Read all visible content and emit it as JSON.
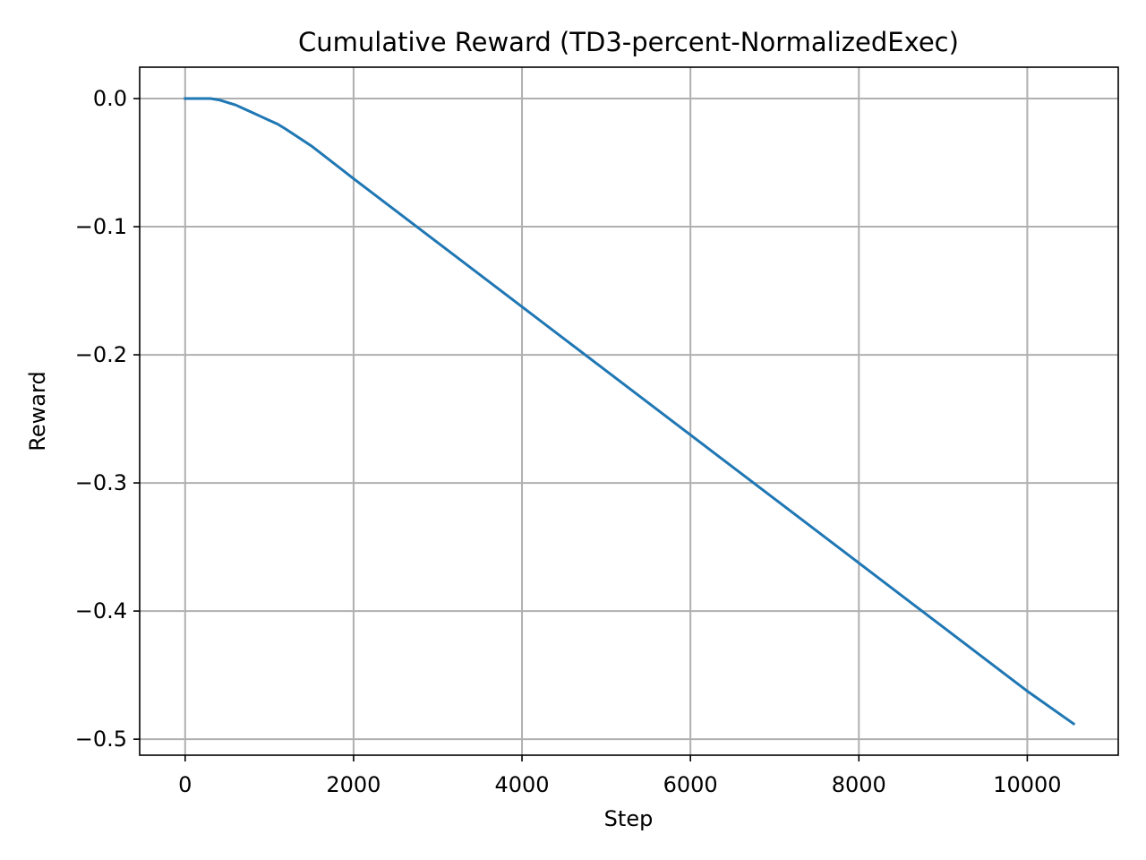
{
  "chart_data": {
    "type": "line",
    "title": "Cumulative Reward (TD3-percent-NormalizedExec)",
    "xlabel": "Step",
    "ylabel": "Reward",
    "xlim": [
      -540,
      11080
    ],
    "ylim": [
      -0.5125,
      0.0245
    ],
    "xticks": [
      0,
      2000,
      4000,
      6000,
      8000,
      10000
    ],
    "xtick_labels": [
      "0",
      "2000",
      "4000",
      "6000",
      "8000",
      "10000"
    ],
    "yticks": [
      0.0,
      -0.1,
      -0.2,
      -0.3,
      -0.4,
      -0.5
    ],
    "ytick_labels": [
      "0.0",
      "−0.1",
      "−0.2",
      "−0.3",
      "−0.4",
      "−0.5"
    ],
    "grid": true,
    "series": [
      {
        "color": "#1f77b4",
        "x": [
          0,
          100,
          200,
          300,
          400,
          500,
          600,
          700,
          800,
          900,
          1000,
          1100,
          1200,
          1500,
          2000,
          3000,
          4000,
          5000,
          6000,
          7000,
          8000,
          9000,
          10000,
          10550
        ],
        "y": [
          0.0,
          0.0,
          0.0,
          0.0,
          -0.001,
          -0.003,
          -0.005,
          -0.008,
          -0.011,
          -0.014,
          -0.017,
          -0.02,
          -0.024,
          -0.037,
          -0.0625,
          -0.1125,
          -0.1625,
          -0.2125,
          -0.2625,
          -0.3125,
          -0.3625,
          -0.4125,
          -0.4625,
          -0.488
        ]
      }
    ]
  }
}
